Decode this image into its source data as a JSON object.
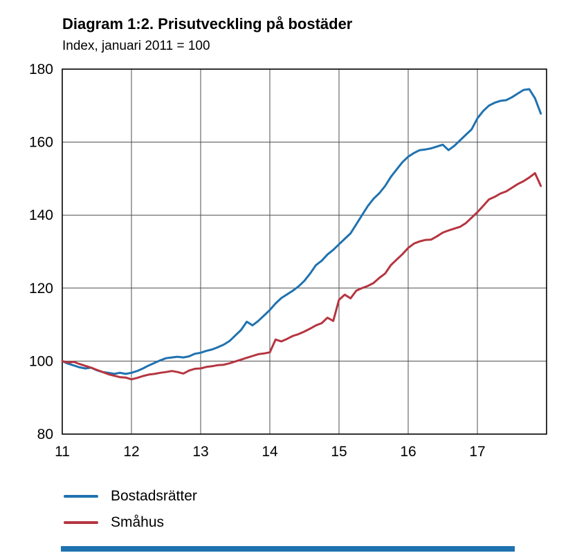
{
  "title": "Diagram 1:2. Prisutveckling på bostäder",
  "subtitle": "Index, januari 2011 = 100",
  "colors": {
    "bostadsratter": "#1f72b0",
    "smahus": "#b53540",
    "grid": "#4d4d4d",
    "axis": "#000000",
    "footer_bar": "#1f72b0"
  },
  "chart_data": {
    "type": "line",
    "title": "Diagram 1:2. Prisutveckling på bostäder",
    "subtitle": "Index, januari 2011 = 100",
    "x_axis": {
      "ticks": [
        11,
        12,
        13,
        14,
        15,
        16,
        17
      ],
      "tick_labels": [
        "11",
        "12",
        "13",
        "14",
        "15",
        "16",
        "17"
      ],
      "range": [
        11,
        18
      ],
      "unit": "year (20xx), monthly data from January 2011"
    },
    "y_axis": {
      "ticks": [
        80,
        100,
        120,
        140,
        160,
        180
      ],
      "tick_labels": [
        "80",
        "100",
        "120",
        "140",
        "160",
        "180"
      ],
      "range": [
        80,
        180
      ],
      "label": "Index, januari 2011 = 100"
    },
    "grid": true,
    "legend_position": "bottom-left",
    "points_per_year": 12,
    "series": [
      {
        "name": "Bostadsrätter",
        "color": "#1f72b0",
        "values": [
          100,
          99.3,
          98.8,
          98.3,
          98.0,
          98.2,
          97.5,
          97.0,
          96.8,
          96.5,
          96.8,
          96.5,
          96.8,
          97.3,
          98.0,
          98.8,
          99.5,
          100.2,
          100.8,
          101.0,
          101.2,
          101.0,
          101.3,
          102.0,
          102.3,
          102.8,
          103.2,
          103.8,
          104.5,
          105.5,
          107.0,
          108.5,
          110.8,
          109.8,
          111.0,
          112.5,
          114.0,
          115.8,
          117.3,
          118.3,
          119.3,
          120.5,
          122.0,
          124.0,
          126.3,
          127.5,
          129.2,
          130.5,
          132.0,
          133.5,
          135.0,
          137.5,
          140.0,
          142.5,
          144.5,
          146.0,
          148.0,
          150.5,
          152.5,
          154.5,
          156.0,
          157.0,
          157.8,
          158.0,
          158.3,
          158.8,
          159.3,
          157.8,
          159.0,
          160.5,
          162.0,
          163.5,
          166.5,
          168.5,
          170.0,
          170.8,
          171.3,
          171.5,
          172.3,
          173.3,
          174.3,
          174.5,
          172.0,
          167.8
        ]
      },
      {
        "name": "Småhus",
        "color": "#b53540",
        "values": [
          100,
          99.6,
          99.8,
          99.2,
          98.7,
          98.2,
          97.6,
          97.0,
          96.4,
          96.0,
          95.6,
          95.5,
          95.0,
          95.4,
          95.9,
          96.3,
          96.5,
          96.8,
          97.0,
          97.3,
          97.0,
          96.6,
          97.4,
          97.9,
          98.0,
          98.4,
          98.6,
          98.9,
          99.0,
          99.4,
          99.9,
          100.4,
          100.9,
          101.4,
          101.9,
          102.1,
          102.4,
          105.9,
          105.4,
          106.1,
          106.9,
          107.4,
          108.1,
          108.9,
          109.8,
          110.4,
          111.9,
          111.0,
          116.8,
          118.2,
          117.2,
          119.3,
          120.0,
          120.6,
          121.4,
          122.8,
          124.0,
          126.3,
          127.8,
          129.3,
          131.0,
          132.2,
          132.8,
          133.2,
          133.3,
          134.2,
          135.2,
          135.8,
          136.3,
          136.8,
          137.8,
          139.3,
          140.8,
          142.5,
          144.3,
          145.0,
          145.9,
          146.5,
          147.5,
          148.5,
          149.3,
          150.3,
          151.5,
          148.0
        ]
      }
    ]
  },
  "legend": {
    "items": [
      {
        "label": "Bostadsrätter",
        "color": "#1f72b0"
      },
      {
        "label": "Småhus",
        "color": "#b53540"
      }
    ]
  }
}
